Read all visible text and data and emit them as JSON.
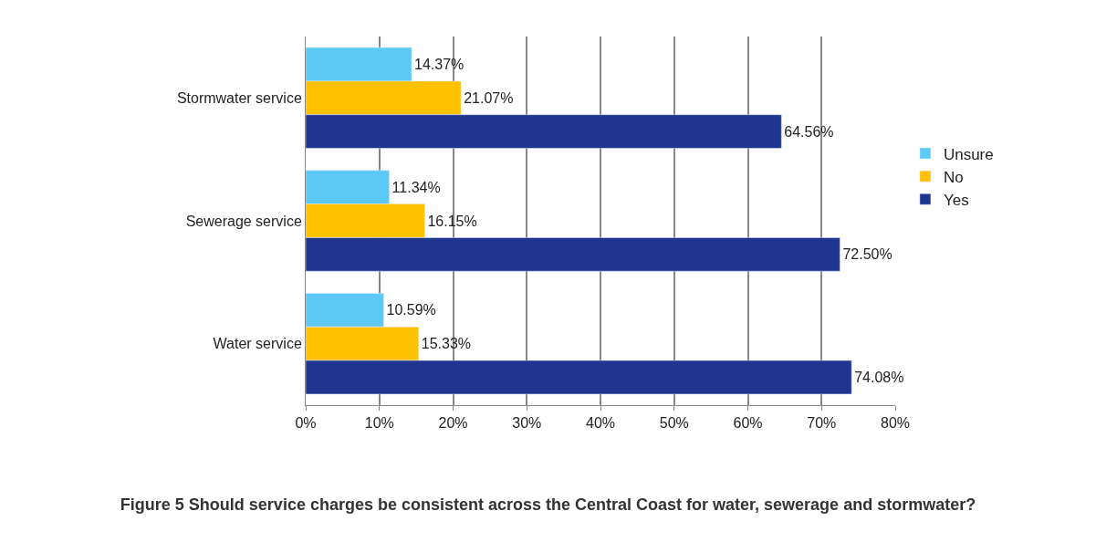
{
  "chart_data": {
    "type": "bar",
    "orientation": "horizontal",
    "title": "Figure 5 Should service charges be consistent across the Central Coast for water, sewerage and stormwater?",
    "categories": [
      "Stormwater service",
      "Sewerage service",
      "Water service"
    ],
    "series": [
      {
        "name": "Unsure",
        "color": "#5bc8f5",
        "values": [
          14.37,
          11.34,
          10.59
        ],
        "value_labels": [
          "14.37%",
          "11.34%",
          "10.59%"
        ]
      },
      {
        "name": "No",
        "color": "#ffc000",
        "values": [
          21.07,
          16.15,
          15.33
        ],
        "value_labels": [
          "21.07%",
          "16.15%",
          "15.33%"
        ]
      },
      {
        "name": "Yes",
        "color": "#1f3590",
        "values": [
          64.56,
          72.5,
          74.08
        ],
        "value_labels": [
          "64.56%",
          "72.50%",
          "74.08%"
        ]
      }
    ],
    "xlim": [
      0,
      80
    ],
    "xticks": [
      {
        "value": 0,
        "label": "0%"
      },
      {
        "value": 10,
        "label": "10%"
      },
      {
        "value": 20,
        "label": "20%"
      },
      {
        "value": 30,
        "label": "30%"
      },
      {
        "value": 40,
        "label": "40%"
      },
      {
        "value": 50,
        "label": "50%"
      },
      {
        "value": 60,
        "label": "60%"
      },
      {
        "value": 70,
        "label": "70%"
      },
      {
        "value": 80,
        "label": "80%"
      }
    ],
    "grid": "x",
    "legend": "right"
  }
}
